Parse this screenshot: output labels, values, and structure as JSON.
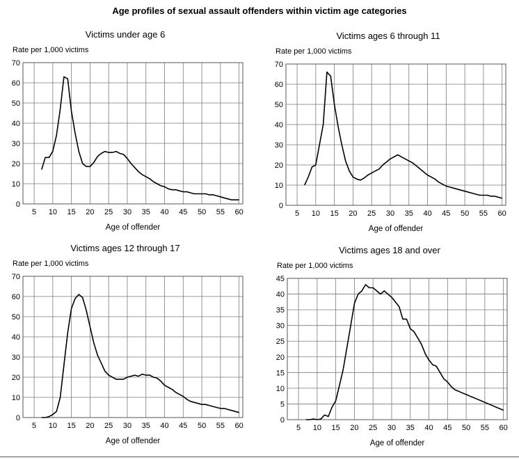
{
  "title": "Age profiles of sexual assault offenders within victim age categories",
  "chart_data": [
    {
      "type": "line",
      "title": "Victims under age 6",
      "ylabel": "Rate per 1,000 victims",
      "xlabel": "Age of offender",
      "xlim": [
        2,
        61
      ],
      "ylim": [
        0,
        70
      ],
      "xticks": [
        5,
        10,
        15,
        20,
        25,
        30,
        35,
        40,
        45,
        50,
        55,
        60
      ],
      "yticks": [
        0,
        10,
        20,
        30,
        40,
        50,
        60,
        70
      ],
      "grid": true,
      "x": [
        7,
        8,
        9,
        10,
        11,
        12,
        13,
        14,
        15,
        16,
        17,
        18,
        19,
        20,
        21,
        22,
        23,
        24,
        25,
        26,
        27,
        28,
        29,
        30,
        31,
        32,
        33,
        34,
        35,
        36,
        37,
        38,
        39,
        40,
        41,
        42,
        43,
        44,
        45,
        46,
        47,
        48,
        49,
        50,
        51,
        52,
        53,
        54,
        55,
        56,
        57,
        58,
        59,
        60
      ],
      "y": [
        17,
        23,
        23,
        26,
        34,
        47,
        63,
        62,
        46,
        35,
        26,
        20,
        18.5,
        18.5,
        20.5,
        23.5,
        25,
        26,
        25.5,
        25.5,
        26,
        25,
        24.5,
        22.5,
        20,
        18,
        16,
        14.5,
        13.5,
        12.5,
        11,
        10,
        9,
        8.5,
        7.5,
        7,
        7,
        6.5,
        6,
        6,
        5.5,
        5,
        5,
        5,
        5,
        4.5,
        4.5,
        4,
        3.5,
        3,
        2.5,
        2,
        2,
        2
      ]
    },
    {
      "type": "line",
      "title": "Victims ages 6 through 11",
      "ylabel": "Rate per 1,000 victims",
      "xlabel": "Age of offender",
      "xlim": [
        2,
        61
      ],
      "ylim": [
        0,
        70
      ],
      "xticks": [
        5,
        10,
        15,
        20,
        25,
        30,
        35,
        40,
        45,
        50,
        55,
        60
      ],
      "yticks": [
        0,
        10,
        20,
        30,
        40,
        50,
        60,
        70
      ],
      "grid": true,
      "x": [
        7,
        8,
        9,
        10,
        11,
        12,
        13,
        14,
        15,
        16,
        17,
        18,
        19,
        20,
        21,
        22,
        23,
        24,
        25,
        26,
        27,
        28,
        29,
        30,
        31,
        32,
        33,
        34,
        35,
        36,
        37,
        38,
        39,
        40,
        41,
        42,
        43,
        44,
        45,
        46,
        47,
        48,
        49,
        50,
        51,
        52,
        53,
        54,
        55,
        56,
        57,
        58,
        59,
        60
      ],
      "y": [
        10,
        14,
        19,
        20,
        30,
        40,
        66,
        64,
        50,
        39,
        30,
        22,
        17,
        14,
        13,
        12.5,
        13.5,
        15,
        16,
        17,
        18,
        20,
        21.5,
        23,
        24,
        25,
        24,
        23,
        22,
        21,
        19.5,
        18,
        16.5,
        15,
        14,
        13,
        11.5,
        10.5,
        9.5,
        9,
        8.5,
        8,
        7.5,
        7,
        6.5,
        6,
        5.5,
        5,
        5,
        5,
        4.5,
        4.5,
        4,
        3.5
      ]
    },
    {
      "type": "line",
      "title": "Victims ages 12 through 17",
      "ylabel": "Rate per 1,000 victims",
      "xlabel": "Age of offender",
      "xlim": [
        2,
        61
      ],
      "ylim": [
        0,
        70
      ],
      "xticks": [
        5,
        10,
        15,
        20,
        25,
        30,
        35,
        40,
        45,
        50,
        55,
        60
      ],
      "yticks": [
        0,
        10,
        20,
        30,
        40,
        50,
        60,
        70
      ],
      "grid": true,
      "x": [
        7,
        8,
        9,
        10,
        11,
        12,
        13,
        14,
        15,
        16,
        17,
        18,
        19,
        20,
        21,
        22,
        23,
        24,
        25,
        26,
        27,
        28,
        29,
        30,
        31,
        32,
        33,
        34,
        35,
        36,
        37,
        38,
        39,
        40,
        41,
        42,
        43,
        44,
        45,
        46,
        47,
        48,
        49,
        50,
        51,
        52,
        53,
        54,
        55,
        56,
        57,
        58,
        59,
        60
      ],
      "y": [
        0,
        0,
        0.5,
        1.5,
        3,
        10,
        26,
        42,
        54,
        59,
        61,
        59.5,
        53,
        45,
        37,
        31,
        27,
        23,
        21,
        20,
        19,
        19,
        19,
        20,
        20.5,
        21,
        20.5,
        21.5,
        21,
        21,
        20,
        19.5,
        18,
        16,
        15,
        14,
        12.5,
        11.5,
        10.5,
        9,
        8,
        7.5,
        7,
        6.5,
        6.5,
        6,
        5.5,
        5,
        4.5,
        4.5,
        4,
        3.5,
        3,
        2.5
      ]
    },
    {
      "type": "line",
      "title": "Victims ages 18 and over",
      "ylabel": "Rate per 1,000 victims",
      "xlabel": "Age of offender",
      "xlim": [
        2,
        61
      ],
      "ylim": [
        0,
        45
      ],
      "xticks": [
        5,
        10,
        15,
        20,
        25,
        30,
        35,
        40,
        45,
        50,
        55,
        60
      ],
      "yticks": [
        0,
        5,
        10,
        15,
        20,
        25,
        30,
        35,
        40,
        45
      ],
      "grid": true,
      "x": [
        7,
        8,
        9,
        10,
        11,
        12,
        13,
        14,
        15,
        16,
        17,
        18,
        19,
        20,
        21,
        22,
        23,
        24,
        25,
        26,
        27,
        28,
        29,
        30,
        31,
        32,
        33,
        34,
        35,
        36,
        37,
        38,
        39,
        40,
        41,
        42,
        43,
        44,
        45,
        46,
        47,
        48,
        49,
        50,
        51,
        52,
        53,
        54,
        55,
        56,
        57,
        58,
        59,
        60
      ],
      "y": [
        0,
        0,
        0.2,
        0,
        0.2,
        1.5,
        1,
        4,
        6,
        11,
        16,
        23,
        30,
        37,
        40,
        41,
        43,
        42,
        42,
        41,
        40,
        41,
        40,
        39,
        37.5,
        36,
        32,
        32,
        29,
        28,
        26,
        24,
        21,
        19,
        17.5,
        17,
        15,
        13,
        12,
        10.5,
        9.5,
        9,
        8.5,
        8,
        7.5,
        7,
        6.5,
        6,
        5.5,
        5,
        4.5,
        4,
        3.5,
        3
      ]
    }
  ]
}
